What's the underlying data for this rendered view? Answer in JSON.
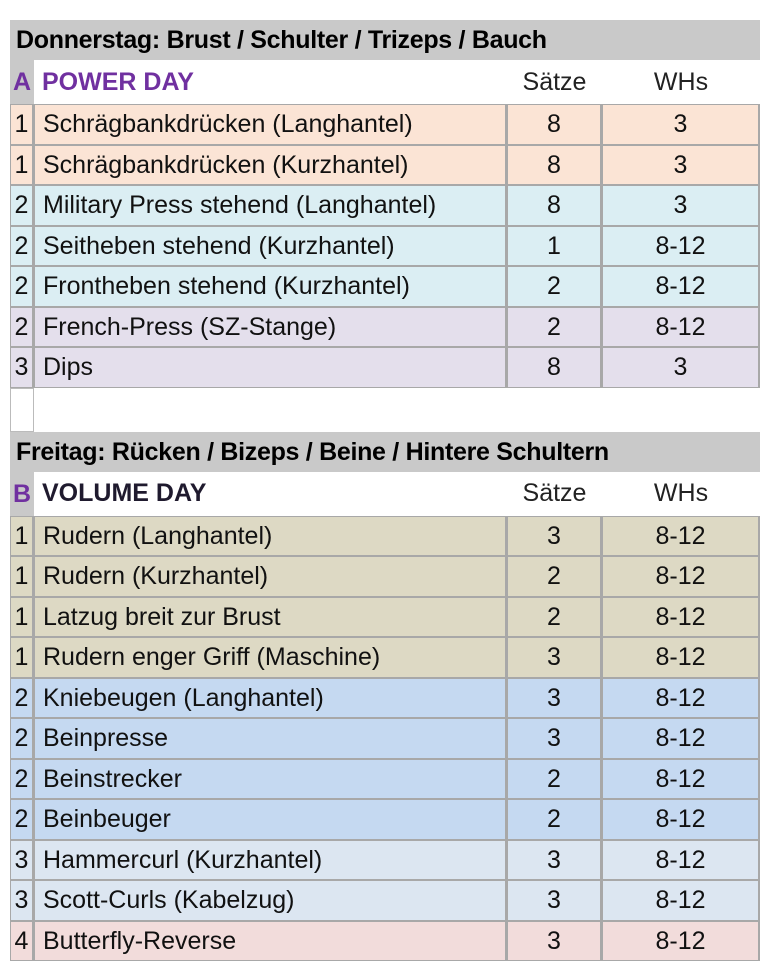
{
  "colors": {
    "header_gray": "#c9c9c9",
    "accent_purple": "#7030a0",
    "peach": "#fbe4d5",
    "cyan": "#dbeef3",
    "lavender": "#e4dfec",
    "tan": "#ddd9c4",
    "blue": "#c5d9f1",
    "pale_blue": "#dce6f1",
    "pink": "#f2dcdb"
  },
  "sections": [
    {
      "title": "Donnerstag: Brust / Schulter / Trizeps / Bauch",
      "letter": "A",
      "label": "POWER DAY",
      "label_color": "#7030a0",
      "col_sets": "Sätze",
      "col_reps": "WHs",
      "rows": [
        {
          "n": "1",
          "name": "Schrägbankdrücken (Langhantel)",
          "sets": "8",
          "reps": "3",
          "color": "#fbe4d5"
        },
        {
          "n": "1",
          "name": "Schrägbankdrücken (Kurzhantel)",
          "sets": "8",
          "reps": "3",
          "color": "#fbe4d5"
        },
        {
          "n": "2",
          "name": "Military Press stehend (Langhantel)",
          "sets": "8",
          "reps": "3",
          "color": "#dbeef3"
        },
        {
          "n": "2",
          "name": "Seitheben stehend (Kurzhantel)",
          "sets": "1",
          "reps": "8-12",
          "color": "#dbeef3"
        },
        {
          "n": "2",
          "name": "Frontheben stehend (Kurzhantel)",
          "sets": "2",
          "reps": "8-12",
          "color": "#dbeef3"
        },
        {
          "n": "2",
          "name": "French-Press (SZ-Stange)",
          "sets": "2",
          "reps": "8-12",
          "color": "#e4dfec"
        },
        {
          "n": "3",
          "name": "Dips",
          "sets": "8",
          "reps": "3",
          "color": "#e4dfec"
        }
      ]
    },
    {
      "title": "Freitag: Rücken / Bizeps / Beine / Hintere Schultern",
      "letter": "B",
      "label": "VOLUME DAY",
      "label_color": "#1f1a2e",
      "col_sets": "Sätze",
      "col_reps": "WHs",
      "rows": [
        {
          "n": "1",
          "name": "Rudern (Langhantel)",
          "sets": "3",
          "reps": "8-12",
          "color": "#ddd9c4"
        },
        {
          "n": "1",
          "name": "Rudern (Kurzhantel)",
          "sets": "2",
          "reps": "8-12",
          "color": "#ddd9c4"
        },
        {
          "n": "1",
          "name": "Latzug breit zur Brust",
          "sets": "2",
          "reps": "8-12",
          "color": "#ddd9c4"
        },
        {
          "n": "1",
          "name": "Rudern enger Griff (Maschine)",
          "sets": "3",
          "reps": "8-12",
          "color": "#ddd9c4"
        },
        {
          "n": "2",
          "name": "Kniebeugen (Langhantel)",
          "sets": "3",
          "reps": "8-12",
          "color": "#c5d9f1"
        },
        {
          "n": "2",
          "name": "Beinpresse",
          "sets": "3",
          "reps": "8-12",
          "color": "#c5d9f1"
        },
        {
          "n": "2",
          "name": "Beinstrecker",
          "sets": "2",
          "reps": "8-12",
          "color": "#c5d9f1"
        },
        {
          "n": "2",
          "name": "Beinbeuger",
          "sets": "2",
          "reps": "8-12",
          "color": "#c5d9f1"
        },
        {
          "n": "3",
          "name": "Hammercurl (Kurzhantel)",
          "sets": "3",
          "reps": "8-12",
          "color": "#dce6f1"
        },
        {
          "n": "3",
          "name": "Scott-Curls (Kabelzug)",
          "sets": "3",
          "reps": "8-12",
          "color": "#dce6f1"
        },
        {
          "n": "4",
          "name": "Butterfly-Reverse",
          "sets": "3",
          "reps": "8-12",
          "color": "#f2dcdb"
        }
      ]
    }
  ]
}
